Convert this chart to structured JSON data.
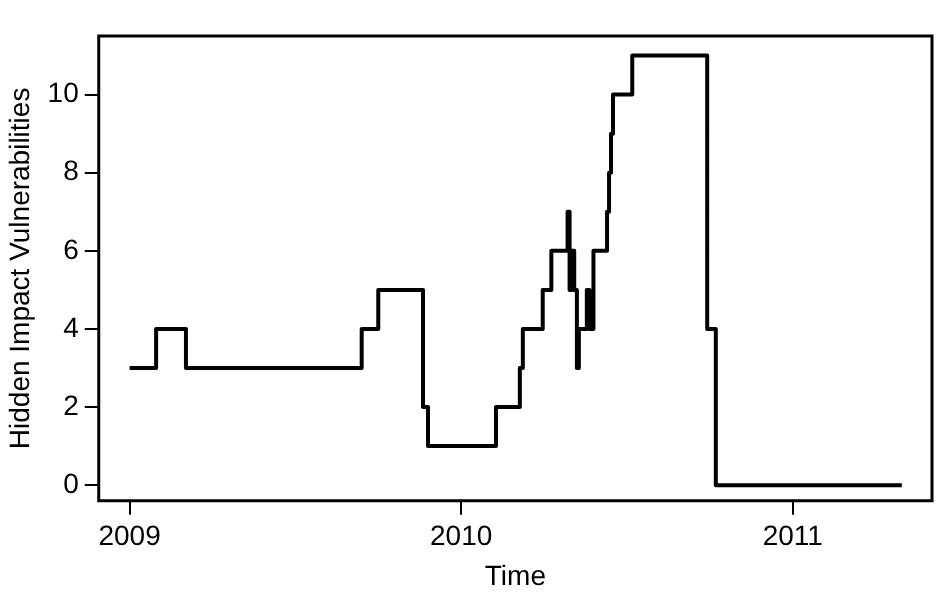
{
  "chart_data": {
    "type": "step",
    "xlabel": "Time",
    "ylabel": "Hidden Impact Vulnerabilities",
    "x": [
      2009.0,
      2009.08,
      2009.17,
      2009.7,
      2009.75,
      2009.885,
      2009.9,
      2010.105,
      2010.177,
      2010.186,
      2010.246,
      2010.272,
      2010.321,
      2010.327,
      2010.333,
      2010.341,
      2010.349,
      2010.355,
      2010.379,
      2010.387,
      2010.399,
      2010.44,
      2010.446,
      2010.452,
      2010.458,
      2010.516,
      2010.742,
      2010.768,
      2011.329
    ],
    "series": [
      {
        "color": "#000000",
        "values": [
          3,
          4,
          3,
          4,
          5,
          2,
          1,
          2,
          3,
          4,
          5,
          6,
          7,
          5,
          6,
          5,
          3,
          4,
          5,
          4,
          6,
          7,
          8,
          9,
          10,
          11,
          4,
          0,
          0
        ]
      }
    ],
    "xlim": [
      2008.907,
      2011.42
    ],
    "xticks": [
      2009,
      2010,
      2011
    ],
    "ylim": [
      -0.4,
      11.5
    ],
    "yticks": [
      0,
      2,
      4,
      6,
      8,
      10
    ],
    "grid": false,
    "legend": false,
    "line_style": "solid",
    "marker": "none"
  }
}
